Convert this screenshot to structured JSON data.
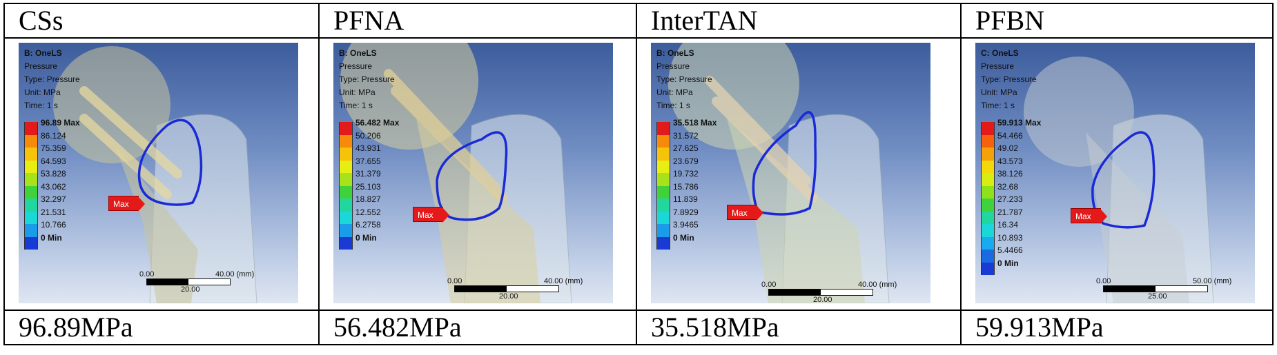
{
  "columns": [
    {
      "header": "CSs",
      "result": "96.89MPa",
      "panel": {
        "system": "B: OneLS",
        "quantity": "Pressure",
        "type": "Type: Pressure",
        "unit": "Unit: MPa",
        "time": "Time: 1 s",
        "legend": [
          "96.89 Max",
          "86.124",
          "75.359",
          "64.593",
          "53.828",
          "43.062",
          "32.297",
          "21.531",
          "10.766",
          "0 Min"
        ],
        "max_tag": "Max",
        "scale_left": "0.00",
        "scale_right": "40.00 (mm)",
        "scale_mid": "20.00"
      }
    },
    {
      "header": "PFNA",
      "result": "56.482MPa",
      "panel": {
        "system": "B: OneLS",
        "quantity": "Pressure",
        "type": "Type: Pressure",
        "unit": "Unit: MPa",
        "time": "Time: 1 s",
        "legend": [
          "56.482 Max",
          "50.206",
          "43.931",
          "37.655",
          "31.379",
          "25.103",
          "18.827",
          "12.552",
          "6.2758",
          "0 Min"
        ],
        "max_tag": "Max",
        "scale_left": "0.00",
        "scale_right": "40.00 (mm)",
        "scale_mid": "20.00"
      }
    },
    {
      "header": "InterTAN",
      "result": "35.518MPa",
      "panel": {
        "system": "B: OneLS",
        "quantity": "Pressure",
        "type": "Type: Pressure",
        "unit": "Unit: MPa",
        "time": "Time: 1 s",
        "legend": [
          "35.518 Max",
          "31.572",
          "27.625",
          "23.679",
          "19.732",
          "15.786",
          "11.839",
          "7.8929",
          "3.9465",
          "0 Min"
        ],
        "max_tag": "Max",
        "scale_left": "0.00",
        "scale_right": "40.00 (mm)",
        "scale_mid": "20.00"
      }
    },
    {
      "header": "PFBN",
      "result": "59.913MPa",
      "panel": {
        "system": "C: OneLS",
        "quantity": "Pressure",
        "type": "Type: Pressure",
        "unit": "Unit: MPa",
        "time": "Time: 1 s",
        "legend": [
          "59.913 Max",
          "54.466",
          "49.02",
          "43.573",
          "38.126",
          "32.68",
          "27.233",
          "21.787",
          "16.34",
          "10.893",
          "5.4466",
          "0 Min"
        ],
        "max_tag": "Max",
        "scale_left": "0.00",
        "scale_right": "50.00 (mm)",
        "scale_mid": "25.00"
      }
    }
  ],
  "legend_colors": [
    "#e41a1a",
    "#f58a0b",
    "#f5c40a",
    "#e8ee12",
    "#a8e21a",
    "#3fd23a",
    "#22d6a0",
    "#1ad8d8",
    "#1a9ce8",
    "#1a3ad6"
  ],
  "legend_colors_12": [
    "#e41a1a",
    "#f5620b",
    "#f5a20a",
    "#f5d80a",
    "#d8ee12",
    "#8ee21a",
    "#3fd23a",
    "#22d6a0",
    "#1ad8d8",
    "#1aaaf0",
    "#1a6ae0",
    "#1a3ad6"
  ]
}
